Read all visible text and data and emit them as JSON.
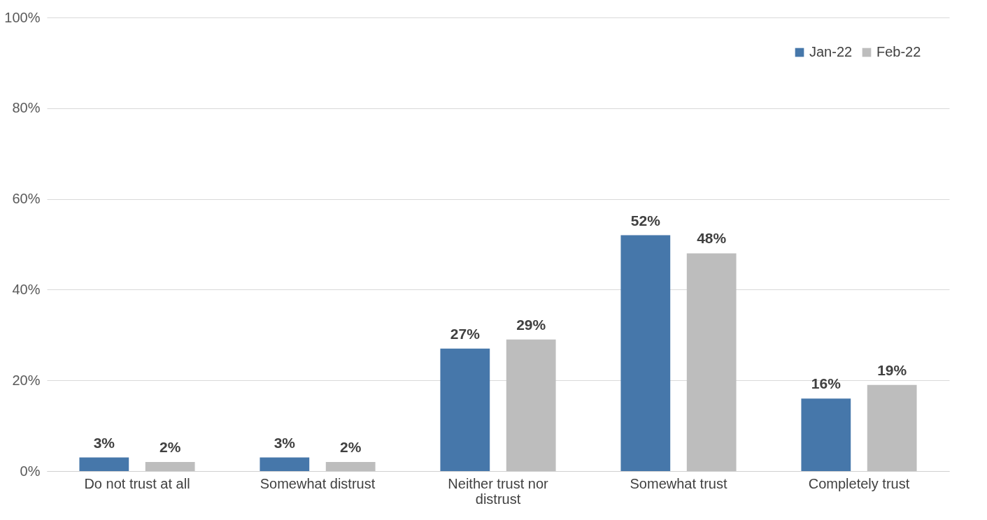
{
  "chart_data": {
    "type": "bar",
    "categories": [
      "Do not trust at all",
      "Somewhat distrust",
      "Neither trust nor distrust",
      "Somewhat trust",
      "Completely trust"
    ],
    "series": [
      {
        "name": "Jan-22",
        "color": "#4677aa",
        "values": [
          3,
          3,
          27,
          52,
          16
        ],
        "value_labels": [
          "3%",
          "3%",
          "27%",
          "52%",
          "16%"
        ]
      },
      {
        "name": "Feb-22",
        "color": "#bdbdbd",
        "values": [
          2,
          2,
          29,
          48,
          19
        ],
        "value_labels": [
          "2%",
          "2%",
          "29%",
          "48%",
          "19%"
        ]
      }
    ],
    "ylim": [
      0,
      100
    ],
    "yticks": [
      {
        "value": 0,
        "label": "0%"
      },
      {
        "value": 20,
        "label": "20%"
      },
      {
        "value": 40,
        "label": "40%"
      },
      {
        "value": 60,
        "label": "60%"
      },
      {
        "value": 80,
        "label": "80%"
      },
      {
        "value": 100,
        "label": "100%"
      }
    ],
    "grid": "y",
    "legend": "top right"
  }
}
